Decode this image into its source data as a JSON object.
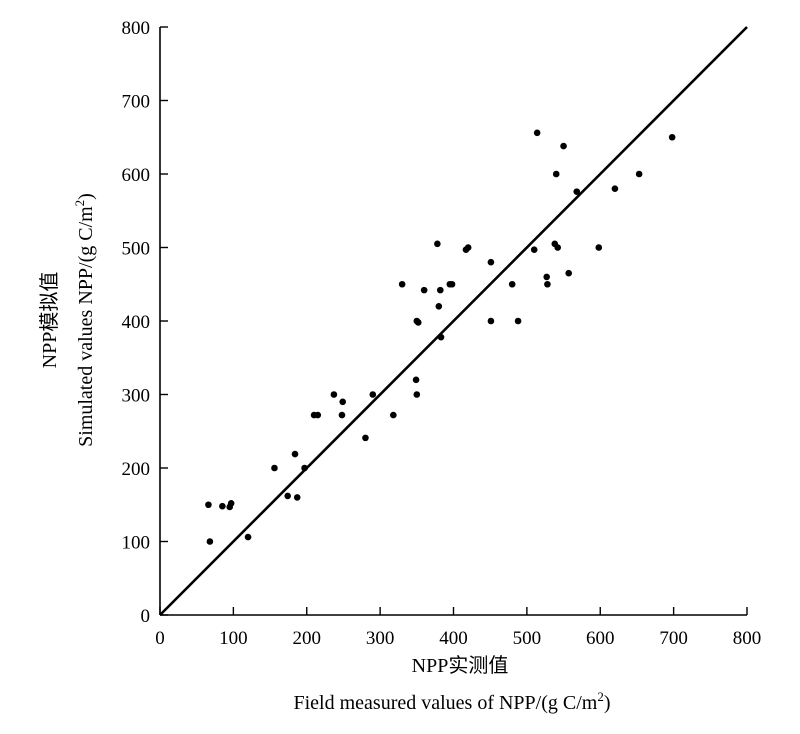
{
  "chart_data": {
    "type": "scatter",
    "xlabel_cn": "NPP实测值",
    "xlabel_en": "Field measured values of  NPP/(g C/m",
    "ylabel_cn": "NPP模拟值",
    "ylabel_en": "Simulated values NPP/(g C/m",
    "unit_superscript": "2",
    "unit_close": ")",
    "xlim": [
      0,
      800
    ],
    "ylim": [
      0,
      800
    ],
    "xticks": [
      "0",
      "100",
      "200",
      "300",
      "400",
      "500",
      "600",
      "700",
      "800"
    ],
    "yticks": [
      "0",
      "100",
      "200",
      "300",
      "400",
      "500",
      "600",
      "700",
      "800"
    ],
    "grid": false,
    "reference_line": {
      "x": [
        0,
        800
      ],
      "y": [
        0,
        800
      ]
    },
    "points": [
      [
        66,
        150
      ],
      [
        68,
        100
      ],
      [
        85,
        148
      ],
      [
        95,
        147
      ],
      [
        97,
        152
      ],
      [
        120,
        106
      ],
      [
        156,
        200
      ],
      [
        174,
        162
      ],
      [
        184,
        219
      ],
      [
        187,
        160
      ],
      [
        197,
        200
      ],
      [
        210,
        272
      ],
      [
        215,
        272
      ],
      [
        237,
        300
      ],
      [
        248,
        272
      ],
      [
        249,
        290
      ],
      [
        280,
        241
      ],
      [
        290,
        300
      ],
      [
        318,
        272
      ],
      [
        330,
        450
      ],
      [
        349,
        320
      ],
      [
        350,
        300
      ],
      [
        350,
        400
      ],
      [
        352,
        398
      ],
      [
        360,
        442
      ],
      [
        378,
        505
      ],
      [
        380,
        420
      ],
      [
        382,
        442
      ],
      [
        383,
        378
      ],
      [
        395,
        450
      ],
      [
        398,
        450
      ],
      [
        417,
        497
      ],
      [
        420,
        500
      ],
      [
        451,
        400
      ],
      [
        451,
        480
      ],
      [
        480,
        450
      ],
      [
        488,
        400
      ],
      [
        510,
        497
      ],
      [
        514,
        656
      ],
      [
        527,
        460
      ],
      [
        528,
        450
      ],
      [
        538,
        505
      ],
      [
        540,
        600
      ],
      [
        542,
        500
      ],
      [
        550,
        638
      ],
      [
        557,
        465
      ],
      [
        568,
        576
      ],
      [
        598,
        500
      ],
      [
        620,
        580
      ],
      [
        653,
        600
      ],
      [
        698,
        650
      ]
    ]
  }
}
